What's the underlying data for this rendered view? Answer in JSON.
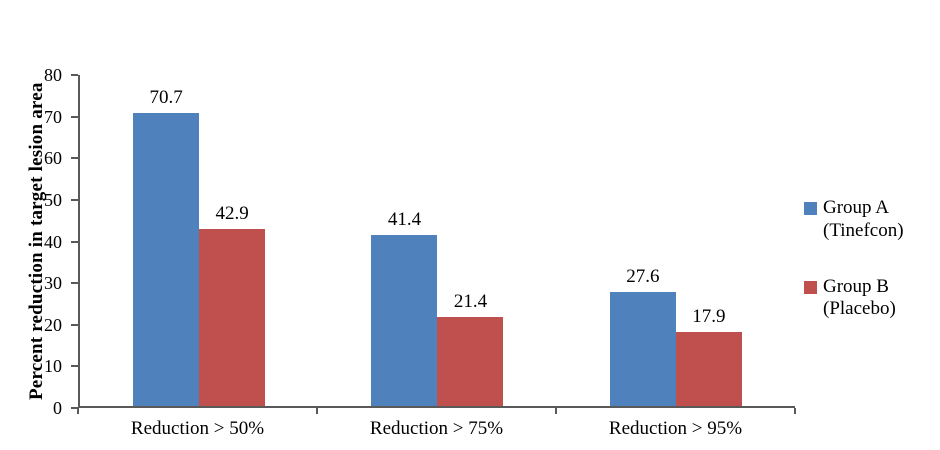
{
  "chart_data": {
    "type": "bar",
    "title": "",
    "xlabel": "",
    "ylabel": "Percent reduction in target lesion area",
    "categories": [
      "Reduction > 50%",
      "Reduction > 75%",
      "Reduction > 95%"
    ],
    "series": [
      {
        "name": "Group A (Tinefcon)",
        "color": "#4F81BD",
        "values": [
          70.7,
          41.4,
          27.6
        ]
      },
      {
        "name": "Group B (Placebo)",
        "color": "#C0504D",
        "values": [
          42.9,
          21.4,
          17.9
        ]
      }
    ],
    "value_labels": [
      [
        "70.7",
        "41.4",
        "27.6"
      ],
      [
        "42.9",
        "21.4",
        "17.9"
      ]
    ],
    "ylim": [
      0,
      80
    ],
    "ytick_step": 10,
    "ytick_labels": [
      "0",
      "10",
      "20",
      "30",
      "40",
      "50",
      "60",
      "70",
      "80"
    ],
    "grid": false,
    "legend_position": "right",
    "axis_color": "#595959"
  }
}
